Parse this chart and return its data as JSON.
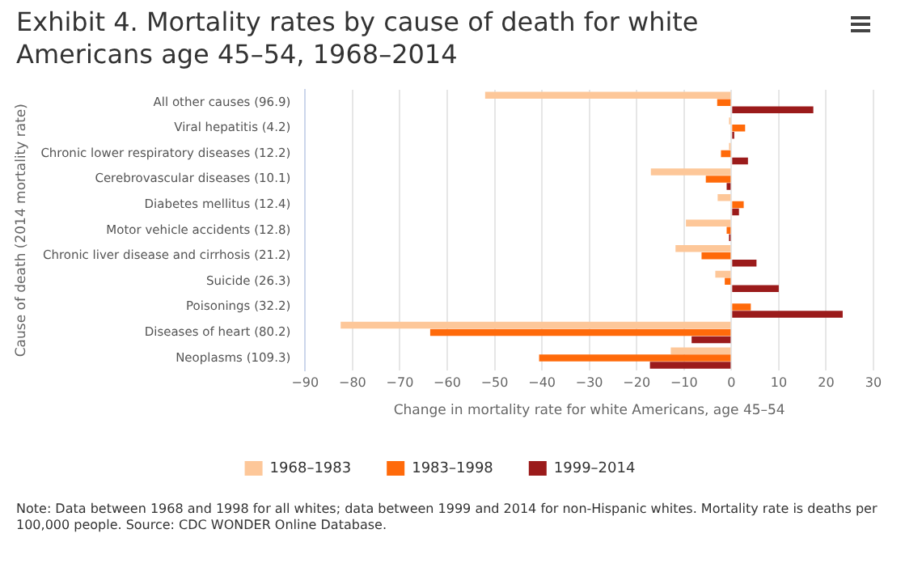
{
  "chart_data": {
    "type": "bar",
    "orientation": "horizontal",
    "title": "Exhibit 4. Mortality rates by cause of death for white Americans age 45–54, 1968–2014",
    "categories": [
      "All other causes (96.9)",
      "Viral hepatitis (4.2)",
      "Chronic lower respiratory diseases (12.2)",
      "Cerebrovascular diseases (10.1)",
      "Diabetes mellitus (12.4)",
      "Motor vehicle accidents (12.8)",
      "Chronic liver disease and cirrhosis (21.2)",
      "Suicide (26.3)",
      "Poisonings (32.2)",
      "Diseases of heart (80.2)",
      "Neoplasms (109.3)"
    ],
    "series": [
      {
        "name": "1968–1983",
        "color": "#fdc799",
        "values": [
          -52,
          -0.5,
          -0.5,
          -17,
          -2.9,
          -9.6,
          -11.8,
          -3.4,
          null,
          -82.5,
          -12.8
        ]
      },
      {
        "name": "1983–1998",
        "color": "#ff6a0a",
        "values": [
          -3,
          2.9,
          -2.2,
          -5.4,
          2.6,
          -1,
          -6.3,
          -1.4,
          4.1,
          -63.6,
          -40.6
        ]
      },
      {
        "name": "1999–2014",
        "color": "#9b1b1b",
        "values": [
          17.3,
          0.6,
          3.5,
          -1,
          1.6,
          -0.5,
          5.3,
          10,
          23.5,
          -8.4,
          -17.2
        ]
      }
    ],
    "xlabel": "Change in mortality rate for white Americans, age 45–54",
    "ylabel": "Cause of death (2014 mortality rate)",
    "xlim": [
      -90,
      30
    ],
    "xticks": [
      -90,
      -80,
      -70,
      -60,
      -50,
      -40,
      -30,
      -20,
      -10,
      0,
      10,
      20,
      30
    ],
    "grid": "x",
    "legend": "bottom",
    "annotations": [
      "Note: Data between 1968 and 1998 for all whites; data between 1999 and 2014 for non-Hispanic whites. Mortality rate is deaths per 100,000 people. Source: CDC WONDER Online Database."
    ]
  }
}
